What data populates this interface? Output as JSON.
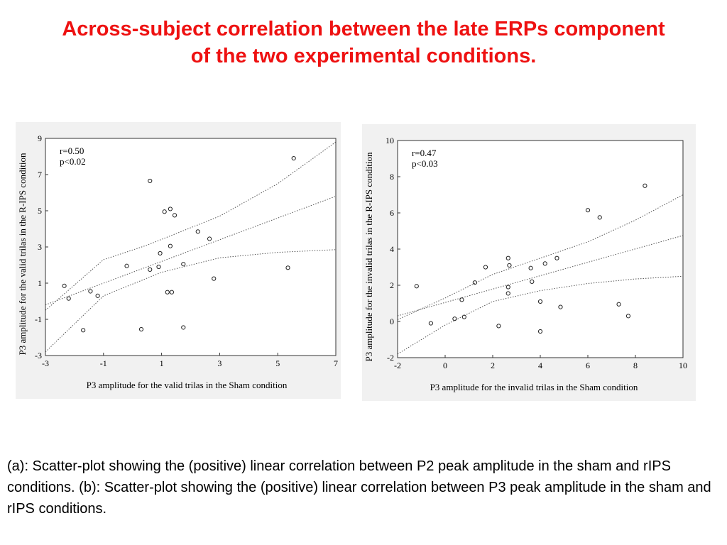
{
  "slide": {
    "title_line1": "Across-subject correlation between the late ERPs component",
    "title_line2": "of the two experimental conditions.",
    "caption": "(a): Scatter-plot showing the (positive) linear correlation between P2 peak amplitude in the sham and rIPS conditions. (b): Scatter-plot showing the (positive) linear correlation between P3 peak amplitude in the sham and rIPS conditions.",
    "colors": {
      "title": "#ee1111"
    }
  },
  "chart_data": [
    {
      "type": "scatter",
      "title": "",
      "xlabel": "P3 amplitude for the valid trilas in the Sham condition",
      "ylabel": "P3 amplitude for the valid trilas in the R-IPS condition",
      "xlim": [
        -3,
        7
      ],
      "ylim": [
        -3,
        9
      ],
      "xticks": [
        -3,
        -1,
        1,
        3,
        5,
        7
      ],
      "yticks": [
        -3,
        -1,
        1,
        3,
        5,
        7,
        9
      ],
      "annotations": [
        "r=0.50",
        "p<0.02"
      ],
      "grid": false,
      "regression": {
        "intercept": 1.6,
        "slope": 0.6
      },
      "confidence_band": {
        "upper": [
          [
            -3,
            -0.5
          ],
          [
            -1,
            2.3
          ],
          [
            0.5,
            3.1
          ],
          [
            3,
            4.7
          ],
          [
            5,
            6.5
          ],
          [
            7,
            8.8
          ]
        ],
        "lower": [
          [
            -3,
            -2.8
          ],
          [
            -1,
            0.3
          ],
          [
            1,
            1.6
          ],
          [
            3,
            2.4
          ],
          [
            5,
            2.7
          ],
          [
            7,
            2.85
          ]
        ]
      },
      "points": [
        {
          "x": -2.35,
          "y": 0.85
        },
        {
          "x": -2.2,
          "y": 0.15
        },
        {
          "x": -1.7,
          "y": -1.6
        },
        {
          "x": -1.45,
          "y": 0.55
        },
        {
          "x": -1.2,
          "y": 0.3
        },
        {
          "x": -0.2,
          "y": 1.95
        },
        {
          "x": 0.3,
          "y": -1.55
        },
        {
          "x": 0.6,
          "y": 6.65
        },
        {
          "x": 0.6,
          "y": 1.75
        },
        {
          "x": 0.9,
          "y": 1.9
        },
        {
          "x": 0.95,
          "y": 2.65
        },
        {
          "x": 1.1,
          "y": 4.95
        },
        {
          "x": 1.2,
          "y": 0.5
        },
        {
          "x": 1.3,
          "y": 5.1
        },
        {
          "x": 1.3,
          "y": 3.05
        },
        {
          "x": 1.35,
          "y": 0.5
        },
        {
          "x": 1.45,
          "y": 4.75
        },
        {
          "x": 1.75,
          "y": 2.05
        },
        {
          "x": 1.75,
          "y": -1.45
        },
        {
          "x": 2.25,
          "y": 3.85
        },
        {
          "x": 2.65,
          "y": 3.45
        },
        {
          "x": 2.8,
          "y": 1.25
        },
        {
          "x": 5.35,
          "y": 1.85
        },
        {
          "x": 5.55,
          "y": 7.9
        }
      ]
    },
    {
      "type": "scatter",
      "title": "",
      "xlabel": "P3 amplitude for the invalid trilas in the Sham condition",
      "ylabel": "P3 amplitude for the invalid trilas in the R-IPS condition",
      "xlim": [
        -2,
        10
      ],
      "ylim": [
        -2,
        10
      ],
      "xticks": [
        -2,
        0,
        2,
        4,
        6,
        8,
        10
      ],
      "yticks": [
        -2,
        0,
        2,
        4,
        6,
        8,
        10
      ],
      "annotations": [
        "r=0.47",
        "p<0.03"
      ],
      "grid": false,
      "regression": {
        "intercept": 1.05,
        "slope": 0.37
      },
      "confidence_band": {
        "upper": [
          [
            -2,
            0.1
          ],
          [
            0,
            1.3
          ],
          [
            2,
            2.6
          ],
          [
            4,
            3.5
          ],
          [
            6,
            4.4
          ],
          [
            8,
            5.6
          ],
          [
            10,
            7.0
          ]
        ],
        "lower": [
          [
            -2,
            -1.8
          ],
          [
            0,
            -0.2
          ],
          [
            2,
            1.1
          ],
          [
            4,
            1.7
          ],
          [
            6,
            2.1
          ],
          [
            8,
            2.35
          ],
          [
            10,
            2.5
          ]
        ]
      },
      "points": [
        {
          "x": -1.2,
          "y": 1.95
        },
        {
          "x": -0.6,
          "y": -0.1
        },
        {
          "x": 0.4,
          "y": 0.15
        },
        {
          "x": 0.7,
          "y": 1.2
        },
        {
          "x": 0.8,
          "y": 0.25
        },
        {
          "x": 1.25,
          "y": 2.15
        },
        {
          "x": 1.7,
          "y": 3.0
        },
        {
          "x": 2.25,
          "y": -0.25
        },
        {
          "x": 2.65,
          "y": 3.5
        },
        {
          "x": 2.7,
          "y": 3.1
        },
        {
          "x": 2.65,
          "y": 1.9
        },
        {
          "x": 2.65,
          "y": 1.55
        },
        {
          "x": 3.6,
          "y": 2.95
        },
        {
          "x": 3.65,
          "y": 2.2
        },
        {
          "x": 4.0,
          "y": 1.1
        },
        {
          "x": 4.0,
          "y": -0.55
        },
        {
          "x": 4.2,
          "y": 3.2
        },
        {
          "x": 4.7,
          "y": 3.5
        },
        {
          "x": 4.85,
          "y": 0.8
        },
        {
          "x": 6.0,
          "y": 6.15
        },
        {
          "x": 6.5,
          "y": 5.75
        },
        {
          "x": 7.3,
          "y": 0.95
        },
        {
          "x": 7.7,
          "y": 0.3
        },
        {
          "x": 8.4,
          "y": 7.5
        }
      ]
    }
  ]
}
